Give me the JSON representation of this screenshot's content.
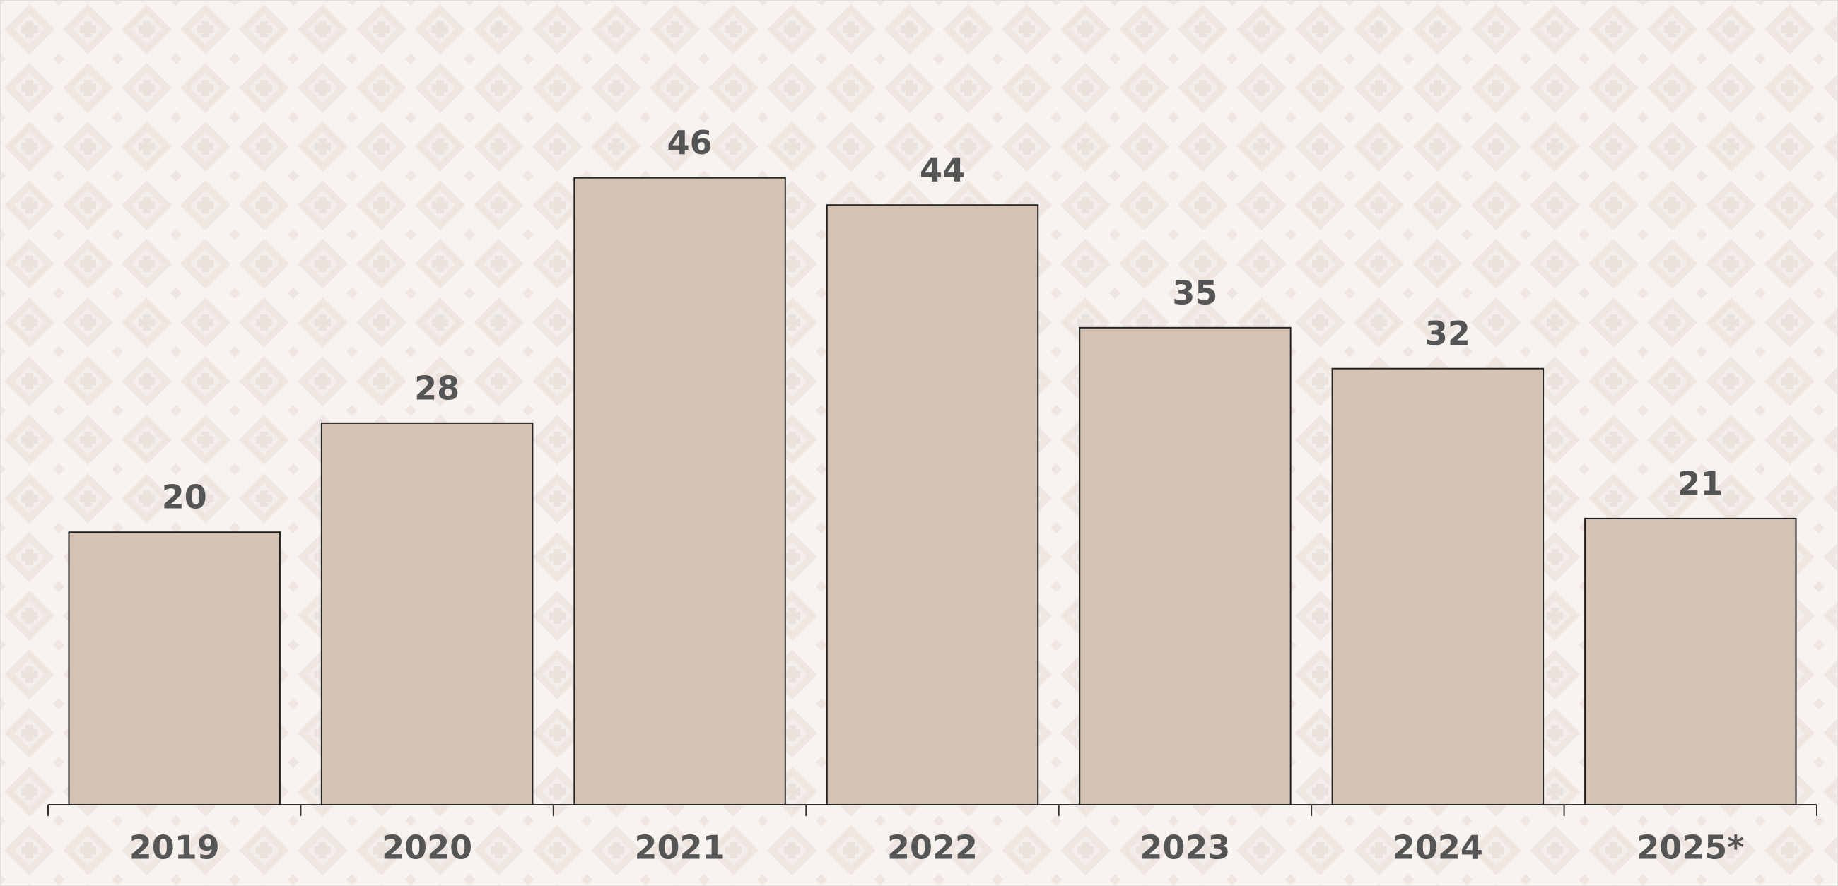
{
  "chart_data": {
    "type": "bar",
    "categories": [
      "2019",
      "2020",
      "2021",
      "2022",
      "2023",
      "2024",
      "2025*"
    ],
    "values": [
      20,
      28,
      46,
      44,
      35,
      32,
      21
    ],
    "color": "#d4c2b5"
  }
}
